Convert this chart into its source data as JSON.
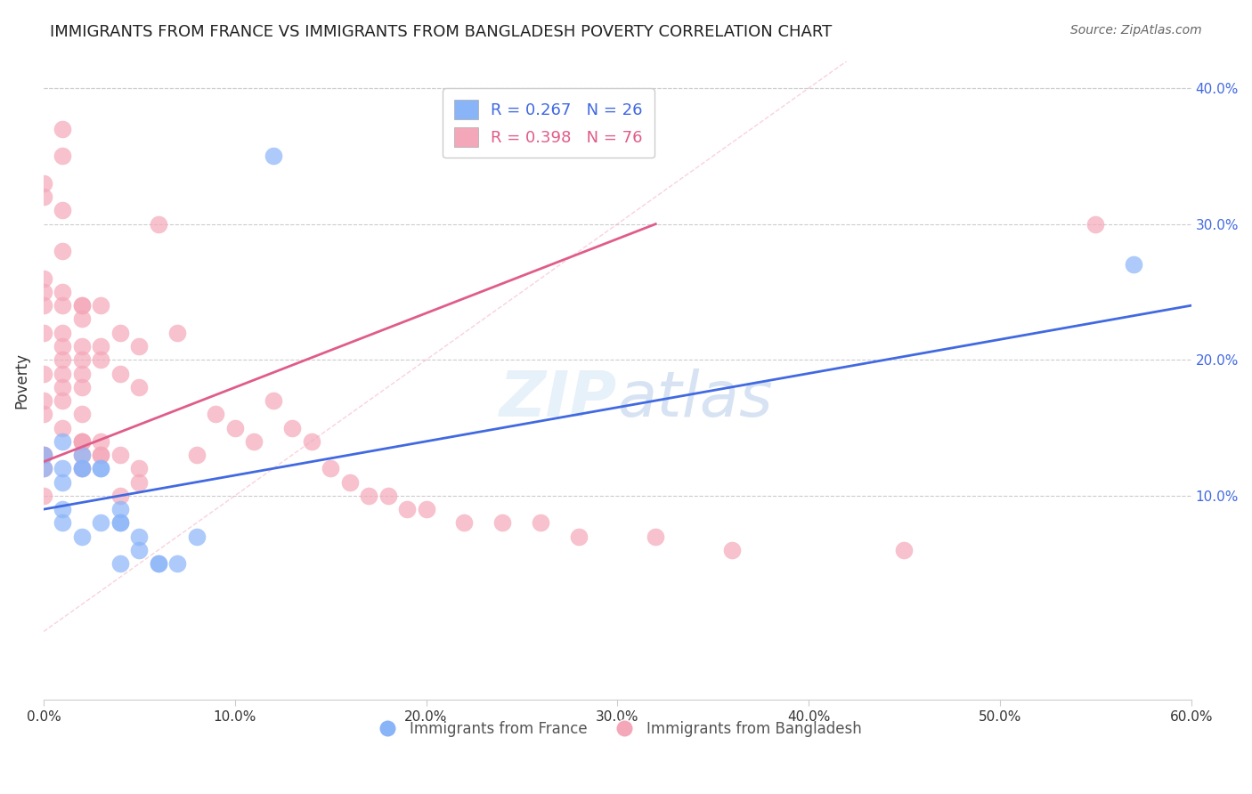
{
  "title": "IMMIGRANTS FROM FRANCE VS IMMIGRANTS FROM BANGLADESH POVERTY CORRELATION CHART",
  "source": "Source: ZipAtlas.com",
  "xlabel_ticks": [
    "0.0%",
    "10.0%",
    "20.0%",
    "30.0%",
    "40.0%",
    "50.0%",
    "60.0%"
  ],
  "xlabel_vals": [
    0.0,
    0.1,
    0.2,
    0.3,
    0.4,
    0.5,
    0.6
  ],
  "ylabel": "Poverty",
  "ylabel_ticks": [
    "10.0%",
    "20.0%",
    "30.0%",
    "40.0%"
  ],
  "ylabel_vals": [
    0.1,
    0.2,
    0.3,
    0.4
  ],
  "xlim": [
    0.0,
    0.6
  ],
  "ylim": [
    -0.05,
    0.42
  ],
  "legend_france": "R = 0.267   N = 26",
  "legend_bangladesh": "R = 0.398   N = 76",
  "france_color": "#8ab4f8",
  "bangladesh_color": "#f4a7b9",
  "france_line_color": "#4169e1",
  "bangladesh_line_color": "#e05c8a",
  "diagonal_color": "#f4a7b9",
  "watermark": "ZIPatlas",
  "france_scatter_x": [
    0.0,
    0.0,
    0.01,
    0.01,
    0.01,
    0.01,
    0.01,
    0.02,
    0.02,
    0.02,
    0.02,
    0.03,
    0.03,
    0.03,
    0.04,
    0.04,
    0.04,
    0.04,
    0.05,
    0.05,
    0.06,
    0.06,
    0.07,
    0.08,
    0.12,
    0.57
  ],
  "france_scatter_y": [
    0.12,
    0.13,
    0.14,
    0.11,
    0.12,
    0.08,
    0.09,
    0.12,
    0.12,
    0.13,
    0.07,
    0.08,
    0.12,
    0.12,
    0.08,
    0.09,
    0.08,
    0.05,
    0.06,
    0.07,
    0.05,
    0.05,
    0.05,
    0.07,
    0.35,
    0.27
  ],
  "bangladesh_scatter_x": [
    0.0,
    0.0,
    0.0,
    0.0,
    0.0,
    0.0,
    0.0,
    0.0,
    0.0,
    0.0,
    0.0,
    0.0,
    0.0,
    0.01,
    0.01,
    0.01,
    0.01,
    0.01,
    0.01,
    0.01,
    0.01,
    0.01,
    0.01,
    0.01,
    0.01,
    0.01,
    0.02,
    0.02,
    0.02,
    0.02,
    0.02,
    0.02,
    0.02,
    0.02,
    0.02,
    0.02,
    0.02,
    0.02,
    0.02,
    0.03,
    0.03,
    0.03,
    0.03,
    0.03,
    0.03,
    0.04,
    0.04,
    0.04,
    0.04,
    0.05,
    0.05,
    0.05,
    0.05,
    0.06,
    0.07,
    0.08,
    0.09,
    0.1,
    0.11,
    0.12,
    0.13,
    0.14,
    0.15,
    0.16,
    0.17,
    0.18,
    0.19,
    0.2,
    0.22,
    0.24,
    0.26,
    0.28,
    0.32,
    0.36,
    0.45,
    0.55
  ],
  "bangladesh_scatter_y": [
    0.12,
    0.33,
    0.32,
    0.26,
    0.25,
    0.24,
    0.22,
    0.19,
    0.17,
    0.16,
    0.13,
    0.13,
    0.1,
    0.37,
    0.35,
    0.31,
    0.28,
    0.25,
    0.24,
    0.22,
    0.21,
    0.2,
    0.19,
    0.18,
    0.17,
    0.15,
    0.24,
    0.24,
    0.23,
    0.21,
    0.2,
    0.19,
    0.18,
    0.16,
    0.14,
    0.14,
    0.14,
    0.13,
    0.12,
    0.24,
    0.21,
    0.2,
    0.14,
    0.13,
    0.13,
    0.22,
    0.19,
    0.13,
    0.1,
    0.21,
    0.18,
    0.12,
    0.11,
    0.3,
    0.22,
    0.13,
    0.16,
    0.15,
    0.14,
    0.17,
    0.15,
    0.14,
    0.12,
    0.11,
    0.1,
    0.1,
    0.09,
    0.09,
    0.08,
    0.08,
    0.08,
    0.07,
    0.07,
    0.06,
    0.06,
    0.3
  ]
}
